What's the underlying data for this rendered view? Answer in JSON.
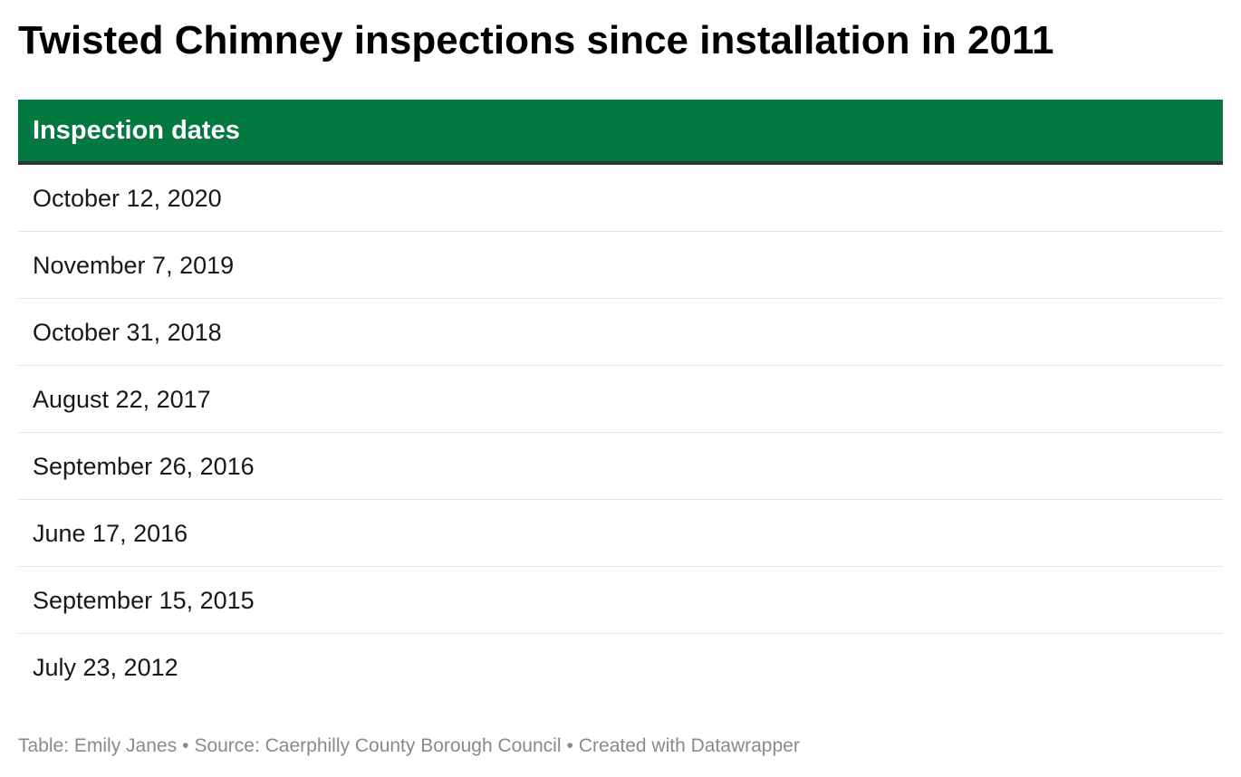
{
  "title": "Twisted Chimney inspections since installation in 2011",
  "chart_data": {
    "type": "table",
    "columns": [
      "Inspection dates"
    ],
    "rows": [
      [
        "October 12, 2020"
      ],
      [
        "November 7, 2019"
      ],
      [
        "October 31, 2018"
      ],
      [
        "August 22, 2017"
      ],
      [
        "September 26, 2016"
      ],
      [
        "June 17, 2016"
      ],
      [
        "September 15, 2015"
      ],
      [
        "July 23, 2012"
      ]
    ],
    "header_color": "#047841"
  },
  "footer": {
    "credit": "Table: Emily Janes",
    "separator": "•",
    "source": "Source: Caerphilly County Borough Council",
    "created_with": "Created with Datawrapper"
  }
}
